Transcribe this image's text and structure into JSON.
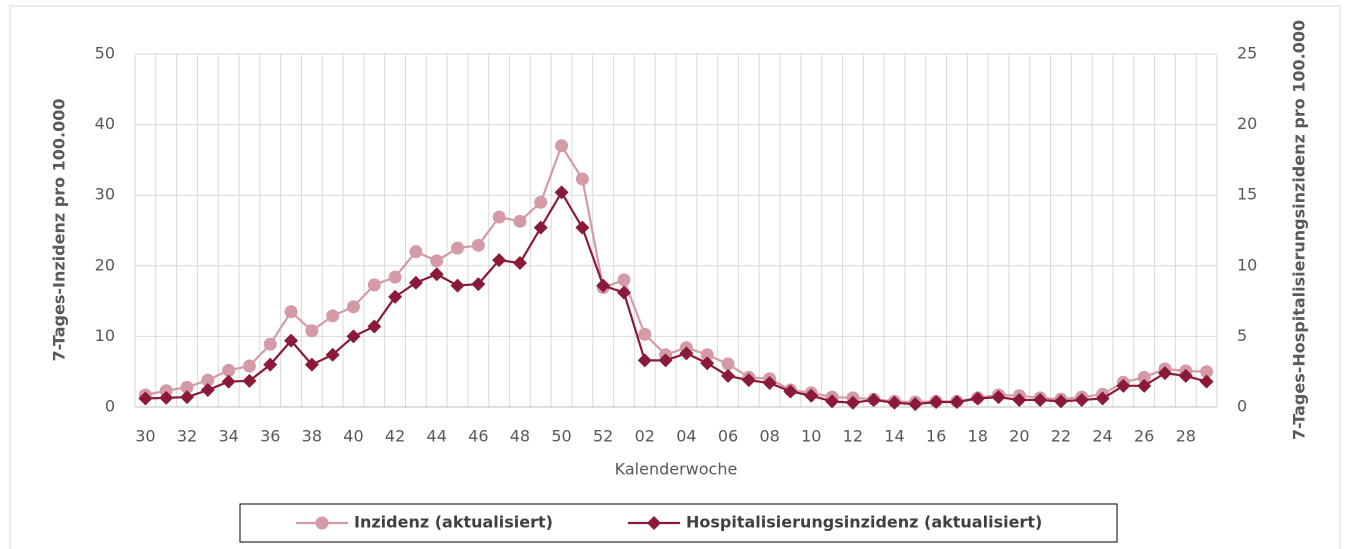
{
  "chart_data": {
    "type": "line",
    "x_label": "Kalenderwoche",
    "y_label": "7-Tages-Inzidenz pro 100.000",
    "y2_label": "7-Tages-Hospitalisierungsinzidenz pro 100.000",
    "categories": [
      "30",
      null,
      "32",
      null,
      "34",
      null,
      "36",
      null,
      "38",
      null,
      "40",
      null,
      "42",
      null,
      "44",
      null,
      "46",
      null,
      "48",
      null,
      "50",
      null,
      "52",
      null,
      "02",
      null,
      "04",
      null,
      "06",
      null,
      "08",
      null,
      "10",
      null,
      "12",
      null,
      "14",
      null,
      "16",
      null,
      "18",
      null,
      "20",
      null,
      "22",
      null,
      "24",
      null,
      "26",
      null,
      "28",
      null
    ],
    "ylim": [
      0,
      50
    ],
    "yticks": [
      0,
      10,
      20,
      30,
      40,
      50
    ],
    "y2lim": [
      0,
      25
    ],
    "y2ticks": [
      0,
      5,
      10,
      15,
      20,
      25
    ],
    "grid": true,
    "legend": "bottom",
    "series": [
      {
        "name": "Inzidenz (aktualisiert)",
        "color": "#d49aa6",
        "marker": "circle",
        "values": [
          1.7,
          2.3,
          2.8,
          3.8,
          5.2,
          5.8,
          8.9,
          13.5,
          10.8,
          12.9,
          14.2,
          17.3,
          18.4,
          22.0,
          20.7,
          22.5,
          22.9,
          26.9,
          26.3,
          29.0,
          37.0,
          32.3,
          16.9,
          18.0,
          10.3,
          7.4,
          8.4,
          7.4,
          6.1,
          4.2,
          4.0,
          2.4,
          2.0,
          1.4,
          1.3,
          1.1,
          0.8,
          0.7,
          0.8,
          0.8,
          1.3,
          1.7,
          1.6,
          1.3,
          1.1,
          1.4,
          1.8,
          3.5,
          4.2,
          5.4,
          5.1,
          5.0
        ]
      },
      {
        "name": "Hospitalisierungsinzidenz (aktualisiert)",
        "color": "#8b1a3a",
        "marker": "diamond",
        "axis": "y2",
        "values": [
          0.6,
          0.65,
          0.7,
          1.2,
          1.8,
          1.85,
          3.0,
          4.7,
          3.0,
          3.7,
          5.0,
          5.7,
          7.8,
          8.8,
          9.4,
          8.6,
          8.7,
          10.4,
          10.2,
          12.7,
          15.2,
          12.7,
          8.6,
          8.1,
          3.3,
          3.3,
          3.8,
          3.1,
          2.2,
          1.9,
          1.7,
          1.1,
          0.8,
          0.4,
          0.3,
          0.5,
          0.3,
          0.2,
          0.35,
          0.35,
          0.6,
          0.7,
          0.5,
          0.5,
          0.4,
          0.5,
          0.6,
          1.5,
          1.5,
          2.4,
          2.2,
          1.8
        ]
      }
    ]
  }
}
